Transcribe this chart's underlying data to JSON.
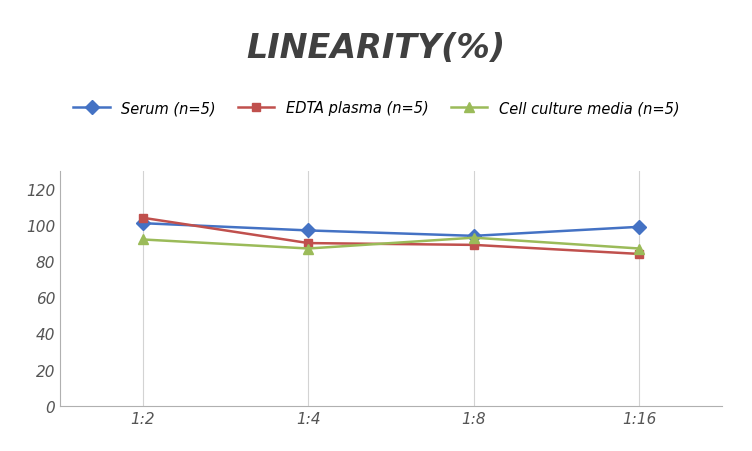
{
  "title": "LINEARITY(%)",
  "x_labels": [
    "1:2",
    "1:4",
    "1:8",
    "1:16"
  ],
  "x_positions": [
    0,
    1,
    2,
    3
  ],
  "series": [
    {
      "label": "Serum (n=5)",
      "values": [
        101,
        97,
        94,
        99
      ],
      "color": "#4472C4",
      "marker": "D",
      "linestyle": "-",
      "linewidth": 1.8,
      "markersize": 7
    },
    {
      "label": "EDTA plasma (n=5)",
      "values": [
        104,
        90,
        89,
        84
      ],
      "color": "#C0504D",
      "marker": "s",
      "linestyle": "-",
      "linewidth": 1.8,
      "markersize": 6
    },
    {
      "label": "Cell culture media (n=5)",
      "values": [
        92,
        87,
        93,
        87
      ],
      "color": "#9BBB59",
      "marker": "^",
      "linestyle": "-",
      "linewidth": 1.8,
      "markersize": 7
    }
  ],
  "ylim": [
    0,
    130
  ],
  "yticks": [
    0,
    20,
    40,
    60,
    80,
    100,
    120
  ],
  "title_fontsize": 24,
  "title_fontstyle": "italic",
  "title_fontweight": "bold",
  "legend_fontsize": 10.5,
  "tick_fontsize": 11,
  "background_color": "#ffffff",
  "grid_color": "#d3d3d3",
  "spine_color": "#b0b0b0",
  "title_color": "#404040"
}
